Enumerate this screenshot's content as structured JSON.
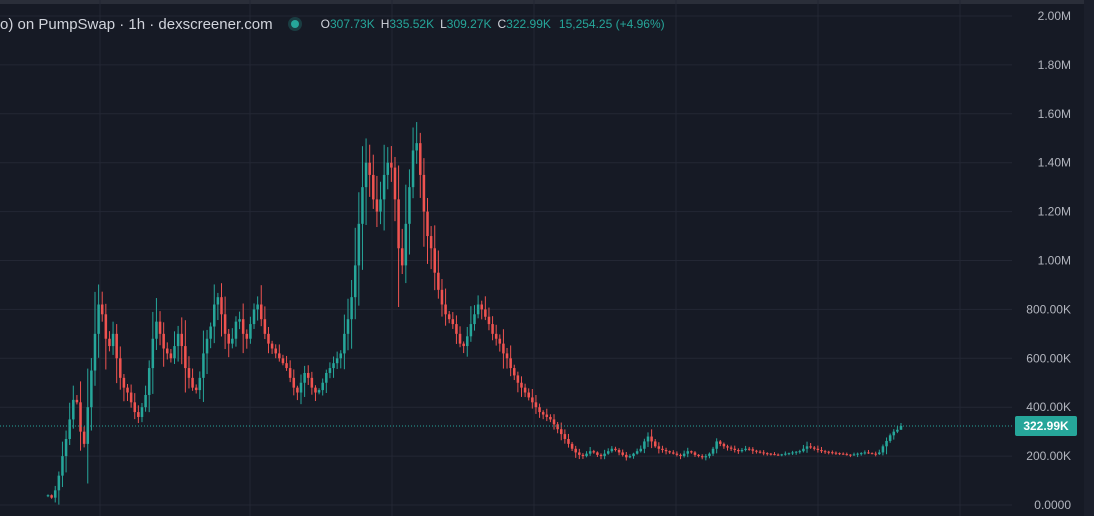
{
  "legend": {
    "title": "o) on PumpSwap · 1h · dexscreener.com",
    "open_label": "O",
    "open": "307.73K",
    "high_label": "H",
    "high": "335.52K",
    "low_label": "L",
    "low": "309.27K",
    "close_label": "C",
    "close": "322.99K",
    "change": "15,254.25 (+4.96%)"
  },
  "current_price": {
    "label": "322.99K",
    "value": 322990
  },
  "colors": {
    "up": "#26a69a",
    "down": "#ef5350",
    "background": "#161a25",
    "grid": "#232734",
    "axis_text": "#b2b5be"
  },
  "chart_data": {
    "type": "candlestick",
    "y_tick_labels": [
      "0.0000",
      "200.00K",
      "400.00K",
      "600.00K",
      "800.00K",
      "1.00M",
      "1.20M",
      "1.40M",
      "1.60M",
      "1.80M",
      "2.00M"
    ],
    "y_tick_values": [
      0,
      200000,
      400000,
      600000,
      800000,
      1000000,
      1200000,
      1400000,
      1600000,
      1800000,
      2000000
    ],
    "ylim": [
      0,
      2000000
    ],
    "grid": true,
    "close_series": [
      40000,
      30000,
      60000,
      120000,
      200000,
      270000,
      350000,
      430000,
      420000,
      300000,
      250000,
      400000,
      550000,
      700000,
      820000,
      780000,
      680000,
      650000,
      700000,
      600000,
      520000,
      480000,
      460000,
      420000,
      380000,
      360000,
      400000,
      450000,
      560000,
      680000,
      750000,
      700000,
      640000,
      620000,
      600000,
      650000,
      700000,
      650000,
      560000,
      520000,
      480000,
      470000,
      520000,
      620000,
      680000,
      730000,
      820000,
      850000,
      780000,
      700000,
      660000,
      680000,
      750000,
      760000,
      700000,
      680000,
      740000,
      800000,
      820000,
      760000,
      700000,
      660000,
      640000,
      620000,
      600000,
      580000,
      560000,
      520000,
      480000,
      460000,
      500000,
      540000,
      520000,
      480000,
      460000,
      470000,
      500000,
      540000,
      560000,
      580000,
      600000,
      620000,
      700000,
      760000,
      850000,
      980000,
      1150000,
      1300000,
      1400000,
      1350000,
      1250000,
      1200000,
      1250000,
      1350000,
      1400000,
      1380000,
      1250000,
      1050000,
      980000,
      1150000,
      1300000,
      1450000,
      1480000,
      1350000,
      1200000,
      1100000,
      1050000,
      950000,
      880000,
      820000,
      780000,
      760000,
      740000,
      700000,
      660000,
      650000,
      690000,
      740000,
      780000,
      820000,
      800000,
      770000,
      740000,
      700000,
      680000,
      660000,
      620000,
      600000,
      560000,
      530000,
      500000,
      480000,
      460000,
      440000,
      420000,
      400000,
      380000,
      370000,
      360000,
      350000,
      330000,
      310000,
      290000,
      270000,
      250000,
      230000,
      215000,
      205000,
      200000,
      210000,
      220000,
      215000,
      205000,
      200000,
      210000,
      220000,
      230000,
      225000,
      215000,
      205000,
      195000,
      200000,
      210000,
      220000,
      230000,
      260000,
      280000,
      260000,
      240000,
      230000,
      225000,
      220000,
      215000,
      210000,
      205000,
      200000,
      210000,
      220000,
      215000,
      205000,
      200000,
      195000,
      200000,
      210000,
      230000,
      260000,
      250000,
      240000,
      235000,
      230000,
      225000,
      220000,
      225000,
      230000,
      228000,
      222000,
      218000,
      215000,
      212000,
      210000,
      208000,
      206000,
      205000,
      207000,
      210000,
      212000,
      215000,
      218000,
      220000,
      230000,
      240000,
      235000,
      230000,
      225000,
      220000,
      218000,
      216000,
      214000,
      212000,
      210000,
      208000,
      206000,
      205000,
      207000,
      210000,
      212000,
      215000,
      212000,
      210000,
      208000,
      215000,
      240000,
      262000,
      285000,
      300000,
      307730,
      322990
    ],
    "last": {
      "open": 307730,
      "high": 335520,
      "low": 309270,
      "close": 322990
    }
  }
}
